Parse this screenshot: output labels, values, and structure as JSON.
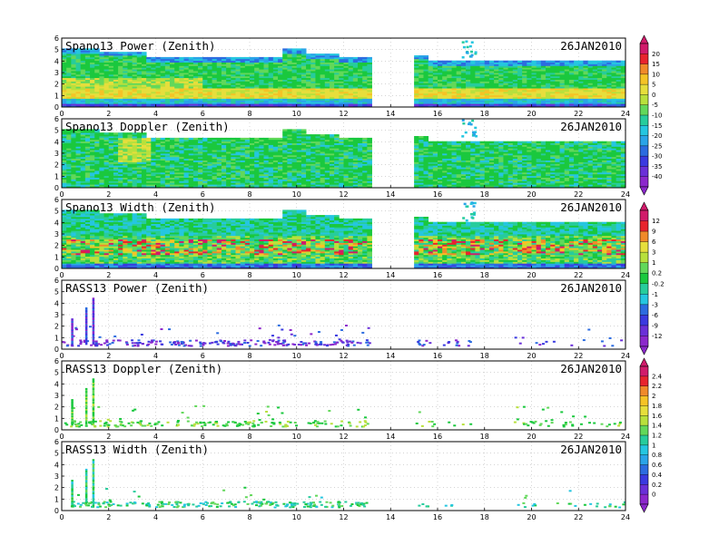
{
  "figure": {
    "colors": {
      "scale_a": [
        "#d11b6b",
        "#e8242e",
        "#f08a2a",
        "#f5c326",
        "#e6de3c",
        "#b8e03c",
        "#62d85a",
        "#1ac83e",
        "#27cc9c",
        "#25c6e0",
        "#2aa4e8",
        "#2c6ce0",
        "#3a3ae0",
        "#6a30d8",
        "#8c28cc"
      ],
      "scale_b": [
        "#d11b6b",
        "#e8242e",
        "#f08a2a",
        "#f5c326",
        "#e6de3c",
        "#b8e03c",
        "#62d85a",
        "#1ac83e",
        "#27cc9c",
        "#25c6e0",
        "#2aa4e8",
        "#2c6ce0",
        "#3a3ae0",
        "#6a30d8",
        "#8c28cc"
      ]
    }
  },
  "chart_data": [
    {
      "type": "heatmap",
      "title": "Spano13 Power (Zenith)",
      "date": "26JAN2010",
      "xlim": [
        0,
        24
      ],
      "ylim": [
        0,
        6
      ],
      "x_ticks": [
        "0",
        "2",
        "4",
        "6",
        "8",
        "10",
        "12",
        "14",
        "16",
        "18",
        "20",
        "22",
        "24"
      ],
      "y_ticks": [
        "0",
        "1",
        "2",
        "3",
        "4",
        "5",
        "6"
      ],
      "gaps": [
        [
          13.1,
          14.9
        ]
      ],
      "top_profile": [
        [
          0,
          5
        ],
        [
          1.5,
          4.8
        ],
        [
          3.5,
          4.3
        ],
        [
          4,
          4.3
        ],
        [
          9.2,
          5
        ],
        [
          10.2,
          4.6
        ],
        [
          11.7,
          4.3
        ],
        [
          13.1,
          4.4
        ],
        [
          14.9,
          4.5
        ],
        [
          15.5,
          4
        ],
        [
          24,
          4
        ]
      ],
      "bands": [
        {
          "y": [
            0,
            0.25
          ],
          "color": "#3a3ae0"
        },
        {
          "y": [
            0.25,
            0.7
          ],
          "color": "#25c6e0"
        },
        {
          "y": [
            0.9,
            1.6
          ],
          "color": "#e6de3c"
        },
        {
          "y": [
            2.0,
            2.6
          ],
          "color": "#b8e03c"
        }
      ]
    },
    {
      "type": "heatmap",
      "title": "Spano13 Doppler (Zenith)",
      "date": "26JAN2010",
      "xlim": [
        0,
        24
      ],
      "ylim": [
        0,
        6
      ],
      "x_ticks": [
        "0",
        "2",
        "4",
        "6",
        "8",
        "10",
        "12",
        "14",
        "16",
        "18",
        "20",
        "22",
        "24"
      ],
      "y_ticks": [
        "0",
        "1",
        "2",
        "3",
        "4",
        "5",
        "6"
      ],
      "gaps": [
        [
          13.1,
          14.9
        ]
      ]
    },
    {
      "type": "heatmap",
      "title": "Spano13 Width (Zenith)",
      "date": "26JAN2010",
      "xlim": [
        0,
        24
      ],
      "ylim": [
        0,
        6
      ],
      "x_ticks": [
        "0",
        "2",
        "4",
        "6",
        "8",
        "10",
        "12",
        "14",
        "16",
        "18",
        "20",
        "22",
        "24"
      ],
      "y_ticks": [
        "0",
        "1",
        "2",
        "3",
        "4",
        "5",
        "6"
      ],
      "gaps": [
        [
          13.1,
          14.9
        ]
      ]
    },
    {
      "type": "scatter",
      "title": "RASS13 Power (Zenith)",
      "date": "26JAN2010",
      "xlim": [
        0,
        24
      ],
      "ylim": [
        0,
        6
      ],
      "x_ticks": [
        "0",
        "2",
        "4",
        "6",
        "8",
        "10",
        "12",
        "14",
        "16",
        "18",
        "20",
        "22",
        "24"
      ],
      "y_ticks": [
        "0",
        "1",
        "2",
        "3",
        "4",
        "5",
        "6"
      ],
      "columns": [
        [
          0.4,
          2.6
        ],
        [
          1.0,
          3.6
        ],
        [
          1.3,
          4.4
        ]
      ]
    },
    {
      "type": "scatter",
      "title": "RASS13 Doppler (Zenith)",
      "date": "26JAN2010",
      "xlim": [
        0,
        24
      ],
      "ylim": [
        0,
        6
      ],
      "x_ticks": [
        "0",
        "2",
        "4",
        "6",
        "8",
        "10",
        "12",
        "14",
        "16",
        "18",
        "20",
        "22",
        "24"
      ],
      "y_ticks": [
        "0",
        "1",
        "2",
        "3",
        "4",
        "5",
        "6"
      ],
      "columns": [
        [
          0.4,
          2.6
        ],
        [
          1.0,
          3.6
        ],
        [
          1.3,
          4.4
        ]
      ]
    },
    {
      "type": "scatter",
      "title": "RASS13 Width (Zenith)",
      "date": "26JAN2010",
      "xlim": [
        0,
        24
      ],
      "ylim": [
        0,
        6
      ],
      "x_ticks": [
        "0",
        "2",
        "4",
        "6",
        "8",
        "10",
        "12",
        "14",
        "16",
        "18",
        "20",
        "22",
        "24"
      ],
      "y_ticks": [
        "0",
        "1",
        "2",
        "3",
        "4",
        "5",
        "6"
      ],
      "columns": [
        [
          0.4,
          2.6
        ],
        [
          1.0,
          3.6
        ],
        [
          1.3,
          4.4
        ]
      ]
    }
  ],
  "colorbars": [
    {
      "labels": [
        "20",
        "15",
        "10",
        "5",
        "0",
        "-5",
        "-10",
        "-15",
        "-20",
        "-25",
        "-30",
        "-35",
        "-40"
      ]
    },
    {
      "labels": [
        "12",
        "9",
        "6",
        "3",
        "1",
        "0.2",
        "-0.2",
        "-1",
        "-3",
        "-6",
        "-9",
        "-12"
      ]
    },
    {
      "labels": [
        "2.4",
        "2.2",
        "2",
        "1.8",
        "1.6",
        "1.4",
        "1.2",
        "1",
        "0.8",
        "0.6",
        "0.4",
        "0.2",
        "0"
      ]
    }
  ]
}
